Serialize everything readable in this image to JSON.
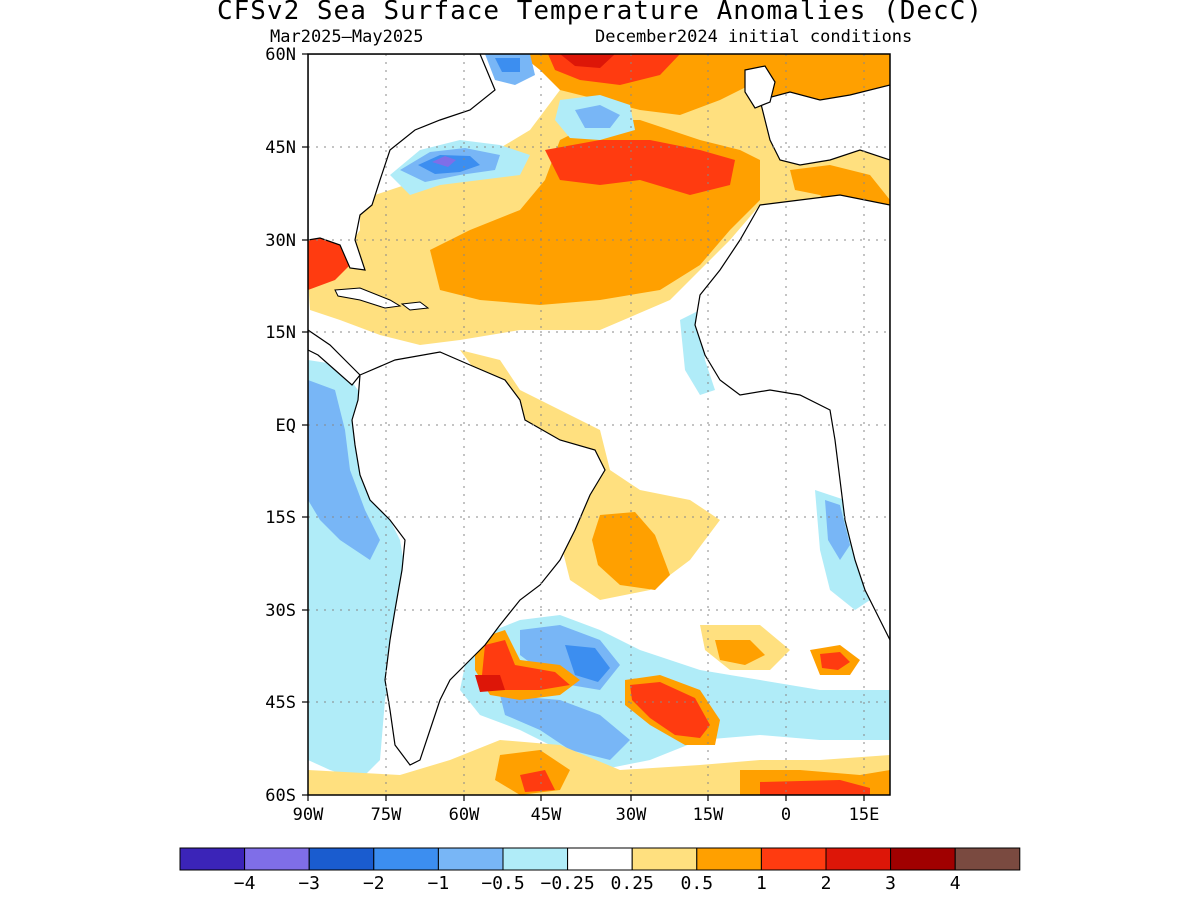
{
  "title": "CFSv2 Sea Surface Temperature Anomalies (DecC)",
  "subtitle_left": "Mar2025–May2025",
  "subtitle_right": "December2024 initial conditions",
  "map": {
    "lon_range": [
      -90,
      15
    ],
    "lat_range": [
      -60,
      60
    ],
    "lat_ticks": [
      "60N",
      "45N",
      "30N",
      "15N",
      "EQ",
      "15S",
      "30S",
      "45S",
      "60S"
    ],
    "lon_ticks": [
      "90W",
      "75W",
      "60W",
      "45W",
      "30W",
      "15W",
      "0",
      "15E"
    ],
    "grid": "dotted"
  },
  "colorbar": {
    "colors": [
      "#3b24b8",
      "#7f6ee8",
      "#1a5ccf",
      "#3c8ef0",
      "#78b6f6",
      "#b0ecf8",
      "#ffffff",
      "#ffe07f",
      "#ffa000",
      "#ff3b10",
      "#dd1608",
      "#a00000",
      "#7a4a40"
    ],
    "labels": [
      "−4",
      "−3",
      "−2",
      "−1",
      "−0.5",
      "−0.25",
      "0.25",
      "0.5",
      "1",
      "2",
      "3",
      "4"
    ]
  }
}
